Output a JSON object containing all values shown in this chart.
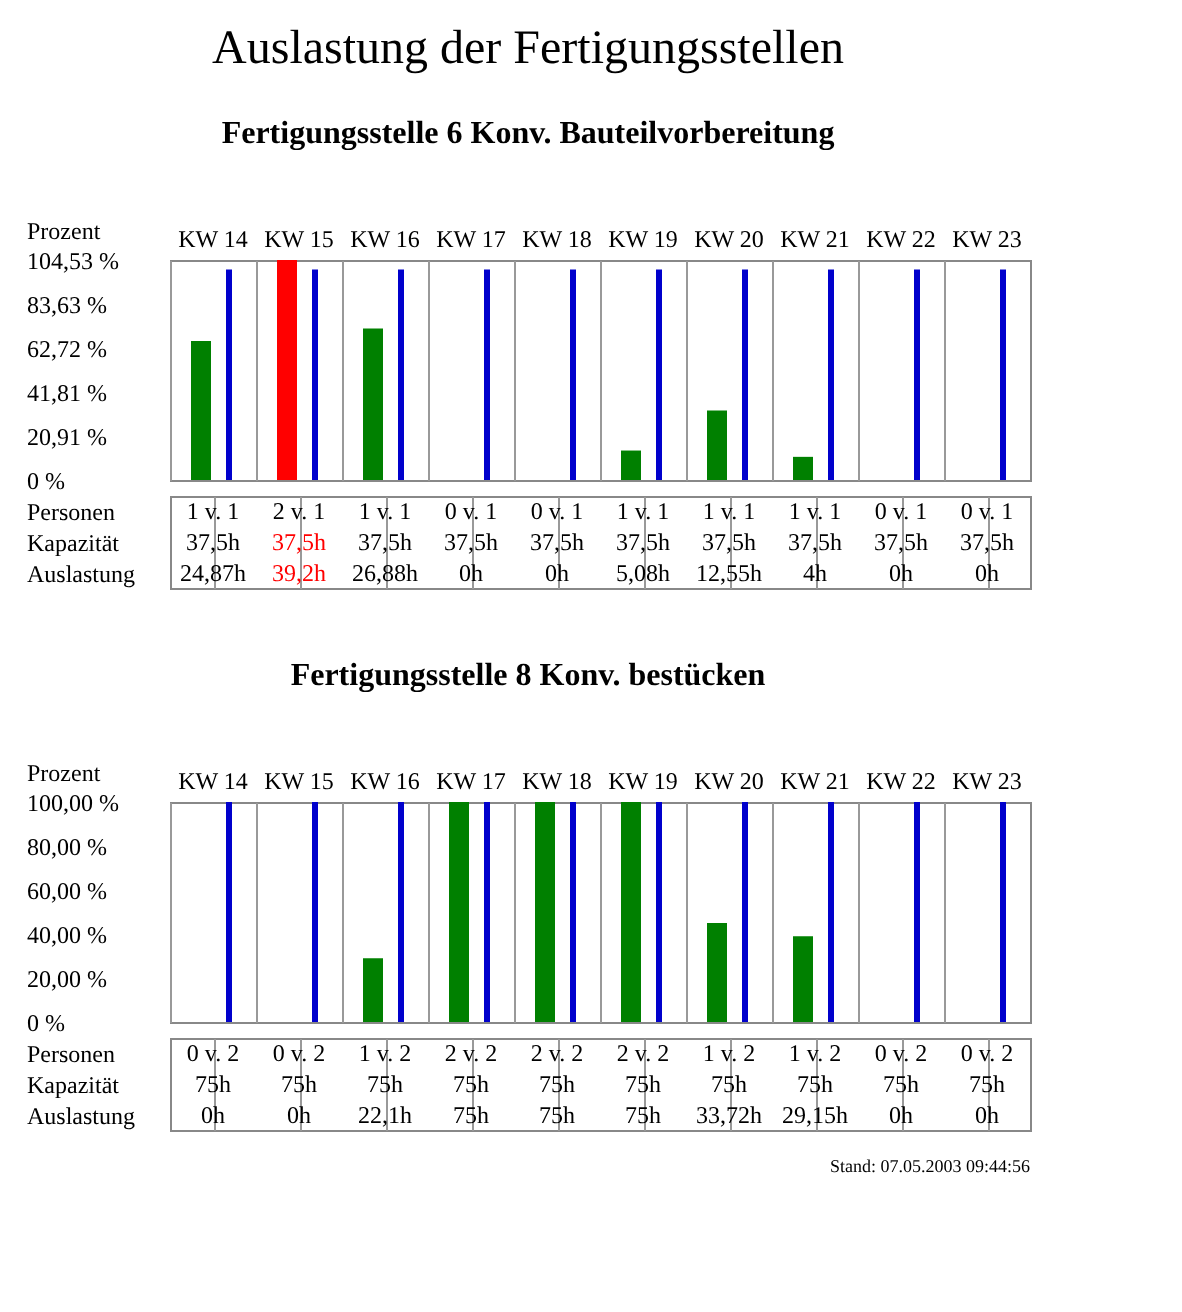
{
  "chart_data": [
    {
      "type": "bar",
      "title": "Auslastung der Fertigungsstellen",
      "subtitle": "Fertigungsstelle 6 Konv. Bauteilvorbereitung",
      "ylabel": "Prozent",
      "categories": [
        "KW 14",
        "KW 15",
        "KW 16",
        "KW 17",
        "KW 18",
        "KW 19",
        "KW 20",
        "KW 21",
        "KW 22",
        "KW 23"
      ],
      "series": [
        {
          "color": "#008000",
          "colors": [
            "#008000",
            "#ff0000",
            "#008000",
            "#008000",
            "#008000",
            "#008000",
            "#008000",
            "#008000",
            "#008000",
            "#008000"
          ],
          "values": [
            66,
            104.53,
            72,
            0,
            0,
            14,
            33,
            11,
            0,
            0
          ]
        },
        {
          "type": "bar",
          "color": "#0000cc",
          "values": [
            100,
            100,
            100,
            100,
            100,
            100,
            100,
            100,
            100,
            100
          ]
        }
      ],
      "ylim": [
        0,
        104.53
      ],
      "yticks": [
        {
          "value": 0,
          "label": "0 %"
        },
        {
          "value": 20.91,
          "label": "20,91 %"
        },
        {
          "value": 41.81,
          "label": "41,81 %"
        },
        {
          "value": 62.72,
          "label": "62,72 %"
        },
        {
          "value": 83.63,
          "label": "83,63 %"
        },
        {
          "value": 104.53,
          "label": "104,53 %"
        }
      ],
      "annotations": [
        "Personen",
        "1 v. 1",
        "2 v. 1",
        "1 v. 1",
        "0 v. 1",
        "0 v. 1",
        "1 v. 1",
        "1 v. 1",
        "1 v. 1",
        "0 v. 1",
        "0 v. 1",
        "Kapazität",
        "37,5h",
        "37,5h",
        "37,5h",
        "37,5h",
        "37,5h",
        "37,5h",
        "37,5h",
        "37,5h",
        "37,5h",
        "37,5h",
        "Auslastung",
        "24,87h",
        "39,2h",
        "26,88h",
        "0h",
        "0h",
        "5,08h",
        "12,55h",
        "4h",
        "0h",
        "0h"
      ]
    },
    {
      "type": "bar",
      "title": "Fertigungsstelle 8 Konv. bestücken",
      "ylabel": "Prozent",
      "categories": [
        "KW 14",
        "KW 15",
        "KW 16",
        "KW 17",
        "KW 18",
        "KW 19",
        "KW 20",
        "KW 21",
        "KW 22",
        "KW 23"
      ],
      "series": [
        {
          "color": "#008000",
          "values": [
            0,
            0,
            29,
            100,
            100,
            100,
            45,
            39,
            0,
            0
          ]
        },
        {
          "type": "bar",
          "color": "#0000cc",
          "values": [
            100,
            100,
            100,
            100,
            100,
            100,
            100,
            100,
            100,
            100
          ]
        }
      ],
      "ylim": [
        0,
        100
      ],
      "yticks": [
        {
          "value": 0,
          "label": "0 %"
        },
        {
          "value": 20,
          "label": "20,00 %"
        },
        {
          "value": 40,
          "label": "40,00 %"
        },
        {
          "value": 60,
          "label": "60,00 %"
        },
        {
          "value": 80,
          "label": "80,00 %"
        },
        {
          "value": 100,
          "label": "100,00 %"
        }
      ],
      "annotations": [
        "Personen",
        "0 v. 2",
        "0 v. 2",
        "1 v. 2",
        "2 v. 2",
        "2 v. 2",
        "2 v. 2",
        "1 v. 2",
        "1 v. 2",
        "0 v. 2",
        "0 v. 2",
        "Kapazität",
        "75h",
        "75h",
        "75h",
        "75h",
        "75h",
        "75h",
        "75h",
        "75h",
        "75h",
        "75h",
        "Auslastung",
        "0h",
        "0h",
        "22,1h",
        "75h",
        "75h",
        "75h",
        "33,72h",
        "29,15h",
        "0h",
        "0h",
        "Stand: 07.05.2003 09:44:56"
      ]
    }
  ]
}
